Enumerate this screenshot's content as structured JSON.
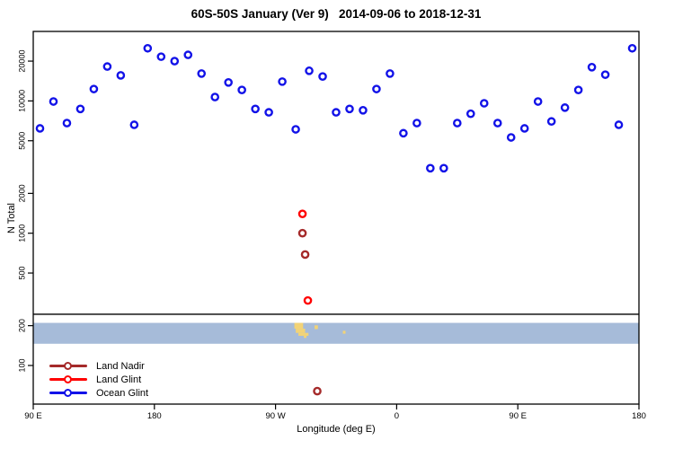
{
  "chart_data": {
    "type": "scatter",
    "title": "60S-50S January (Ver 9)   2014-09-06 to 2018-12-31",
    "xlabel": "Longitude (deg E)",
    "ylabel": "N Total",
    "x_axis": {
      "note": "longitude wraps; plotted as continuous 90E..540 (=180E second time)",
      "range_lon": [
        90,
        540
      ],
      "ticks": [
        {
          "lon": 90,
          "label": "90 E"
        },
        {
          "lon": 180,
          "label": "180"
        },
        {
          "lon": 270,
          "label": "90 W"
        },
        {
          "lon": 360,
          "label": "0"
        },
        {
          "lon": 450,
          "label": "90 E"
        },
        {
          "lon": 540,
          "label": "180"
        }
      ]
    },
    "y_axis": {
      "scale": "log",
      "range": [
        47,
        33500
      ],
      "ticks": [
        100,
        200,
        500,
        1000,
        2000,
        5000,
        10000,
        20000
      ]
    },
    "series": [
      {
        "name": "Land Nadir",
        "color": "#A52A2A",
        "points": [
          {
            "lon": 290,
            "n": 1000
          },
          {
            "lon": 292,
            "n": 690
          },
          {
            "lon": 301,
            "n": 64
          }
        ]
      },
      {
        "name": "Land Glint",
        "color": "#FF0000",
        "points": [
          {
            "lon": 290,
            "n": 1400
          },
          {
            "lon": 294,
            "n": 310
          }
        ]
      },
      {
        "name": "Ocean Glint",
        "color": "#1212E8",
        "points": [
          {
            "lon": 95,
            "n": 6200
          },
          {
            "lon": 105,
            "n": 9900
          },
          {
            "lon": 115,
            "n": 6800
          },
          {
            "lon": 125,
            "n": 8700
          },
          {
            "lon": 135,
            "n": 12300
          },
          {
            "lon": 145,
            "n": 18200
          },
          {
            "lon": 155,
            "n": 15600
          },
          {
            "lon": 165,
            "n": 6600
          },
          {
            "lon": 175,
            "n": 25000
          },
          {
            "lon": 185,
            "n": 21600
          },
          {
            "lon": 195,
            "n": 20000
          },
          {
            "lon": 205,
            "n": 22300
          },
          {
            "lon": 215,
            "n": 16100
          },
          {
            "lon": 225,
            "n": 10700
          },
          {
            "lon": 235,
            "n": 13800
          },
          {
            "lon": 245,
            "n": 12100
          },
          {
            "lon": 255,
            "n": 8700
          },
          {
            "lon": 265,
            "n": 8200
          },
          {
            "lon": 275,
            "n": 14000
          },
          {
            "lon": 285,
            "n": 6100
          },
          {
            "lon": 295,
            "n": 16900
          },
          {
            "lon": 305,
            "n": 15300
          },
          {
            "lon": 315,
            "n": 8200
          },
          {
            "lon": 325,
            "n": 8700
          },
          {
            "lon": 335,
            "n": 8500
          },
          {
            "lon": 345,
            "n": 12300
          },
          {
            "lon": 355,
            "n": 16100
          },
          {
            "lon": 365,
            "n": 5700
          },
          {
            "lon": 375,
            "n": 6800
          },
          {
            "lon": 385,
            "n": 3100
          },
          {
            "lon": 395,
            "n": 3100
          },
          {
            "lon": 405,
            "n": 6800
          },
          {
            "lon": 415,
            "n": 8000
          },
          {
            "lon": 425,
            "n": 9600
          },
          {
            "lon": 435,
            "n": 6800
          },
          {
            "lon": 445,
            "n": 5300
          },
          {
            "lon": 455,
            "n": 6200
          },
          {
            "lon": 465,
            "n": 9900
          },
          {
            "lon": 475,
            "n": 7000
          },
          {
            "lon": 485,
            "n": 8900
          },
          {
            "lon": 495,
            "n": 12100
          },
          {
            "lon": 505,
            "n": 18000
          },
          {
            "lon": 515,
            "n": 15800
          },
          {
            "lon": 525,
            "n": 6600
          },
          {
            "lon": 535,
            "n": 25000
          }
        ]
      }
    ],
    "map_strip": {
      "description": "world-map strip of the 60S-50S latitude band",
      "ocean_color": "#A6BBD9",
      "land_color": "#F2D377",
      "top_n": 210,
      "bottom_n": 146,
      "divider_n": 244,
      "land_patches": [
        {
          "lon0": 284,
          "lon1": 290.5,
          "f0": 0.0,
          "f1": 0.28
        },
        {
          "lon0": 285,
          "lon1": 292,
          "f0": 0.28,
          "f1": 0.48
        },
        {
          "lon0": 287,
          "lon1": 294.5,
          "f0": 0.48,
          "f1": 0.62
        },
        {
          "lon0": 291,
          "lon1": 293,
          "f0": 0.62,
          "f1": 0.72
        },
        {
          "lon0": 299,
          "lon1": 301.5,
          "f0": 0.12,
          "f1": 0.3
        },
        {
          "lon0": 320,
          "lon1": 322,
          "f0": 0.38,
          "f1": 0.52
        }
      ]
    },
    "legend": {
      "position": "bottom-left"
    }
  }
}
